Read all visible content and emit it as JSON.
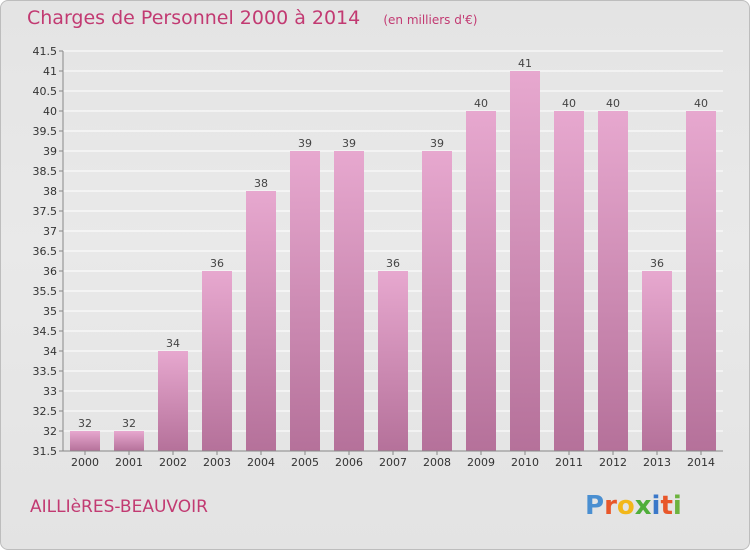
{
  "header": {
    "title": "Charges de Personnel 2000 à 2014",
    "subtitle": "(en milliers d'€)"
  },
  "footer": {
    "place": "AILLIèRES-BEAUVOIR",
    "logo_letters": [
      "P",
      "r",
      "o",
      "x",
      "i",
      "t",
      "i"
    ],
    "logo_colors": [
      "#4a8fd1",
      "#e8572a",
      "#f2b71a",
      "#4fae3a",
      "#3a78c9",
      "#e8572a",
      "#6cb33e"
    ]
  },
  "colors": {
    "bar_top": "#e7a8cf",
    "bar_bottom": "#b5719a",
    "grid": "#ffffff",
    "text_accent": "#c23a72"
  },
  "chart_data": {
    "type": "bar",
    "title": "Charges de Personnel 2000 à 2014",
    "subtitle": "(en milliers d'€)",
    "categories": [
      "2000",
      "2001",
      "2002",
      "2003",
      "2004",
      "2005",
      "2006",
      "2007",
      "2008",
      "2009",
      "2010",
      "2011",
      "2012",
      "2013",
      "2014"
    ],
    "values": [
      32,
      32,
      34,
      36,
      38,
      39,
      39,
      36,
      39,
      40,
      41,
      40,
      40,
      36,
      40
    ],
    "ylim": [
      31.5,
      41.5
    ],
    "yticks": [
      "31.5",
      "32",
      "32.5",
      "33",
      "33.5",
      "34",
      "34.5",
      "35",
      "35.5",
      "36",
      "36.5",
      "37",
      "37.5",
      "38",
      "38.5",
      "39",
      "39.5",
      "40",
      "40.5",
      "41",
      "41.5"
    ],
    "grid": true,
    "xlabel": "",
    "ylabel": ""
  }
}
